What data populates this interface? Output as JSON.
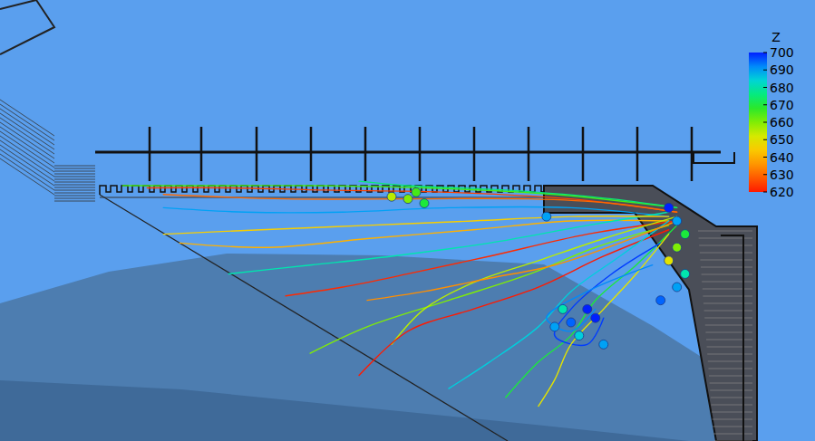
{
  "chart_data": {
    "type": "streamlines",
    "tick_labels": false,
    "xlim": [
      0,
      100
    ],
    "ylim": [
      0,
      100
    ],
    "colorbar": {
      "title": "Z",
      "range": [
        620,
        700
      ],
      "ticks": [
        700,
        690,
        680,
        670,
        660,
        650,
        640,
        630,
        620
      ]
    },
    "lines": [
      {
        "z": 625,
        "x": [
          83,
          70,
          55,
          40,
          28,
          18
        ],
        "y": [
          52,
          55,
          56.5,
          57,
          57.5,
          57.5
        ]
      },
      {
        "z": 665,
        "x": [
          83,
          68,
          52,
          38,
          25,
          15
        ],
        "y": [
          53,
          56,
          57.5,
          58,
          58,
          58
        ]
      },
      {
        "z": 690,
        "x": [
          82,
          70,
          55,
          42,
          30,
          20
        ],
        "y": [
          51,
          53,
          53,
          52,
          52,
          53
        ]
      },
      {
        "z": 640,
        "x": [
          82,
          70,
          58,
          45,
          33,
          22
        ],
        "y": [
          50,
          50,
          48,
          46,
          44,
          45
        ]
      },
      {
        "z": 680,
        "x": [
          82,
          72,
          60,
          48,
          38,
          28
        ],
        "y": [
          52,
          49,
          45,
          42,
          40,
          38
        ]
      },
      {
        "z": 622,
        "x": [
          83,
          72,
          60,
          50,
          42,
          35
        ],
        "y": [
          50,
          47,
          42,
          38,
          35,
          33
        ]
      },
      {
        "z": 660,
        "x": [
          82,
          73,
          65,
          55,
          45,
          38
        ],
        "y": [
          49,
          44,
          38,
          32,
          26,
          20
        ]
      },
      {
        "z": 655,
        "x": [
          83,
          74,
          66,
          58,
          52,
          48
        ],
        "y": [
          51,
          46,
          41,
          36,
          30,
          22
        ]
      },
      {
        "z": 620,
        "x": [
          82,
          74,
          66,
          58,
          50,
          44
        ],
        "y": [
          48,
          42,
          35,
          30,
          25,
          15
        ]
      },
      {
        "z": 685,
        "x": [
          82,
          76,
          70,
          66,
          60,
          55
        ],
        "y": [
          50,
          42,
          34,
          26,
          18,
          12
        ]
      },
      {
        "z": 670,
        "x": [
          83,
          78,
          73,
          70,
          66,
          62
        ],
        "y": [
          49,
          40,
          32,
          24,
          18,
          10
        ]
      },
      {
        "z": 698,
        "x": [
          81,
          75,
          70,
          68,
          72,
          74
        ],
        "y": [
          45,
          38,
          30,
          24,
          22,
          28
        ]
      },
      {
        "z": 650,
        "x": [
          82,
          78,
          74,
          70,
          68,
          66
        ],
        "y": [
          47,
          38,
          30,
          22,
          14,
          8
        ]
      },
      {
        "z": 630,
        "x": [
          83,
          75,
          65,
          50,
          35,
          20
        ],
        "y": [
          52,
          54,
          55,
          55,
          55,
          56
        ]
      },
      {
        "z": 675,
        "x": [
          83,
          75,
          62,
          50,
          44
        ],
        "y": [
          53,
          55,
          57,
          58,
          59
        ]
      },
      {
        "z": 645,
        "x": [
          82,
          70,
          58,
          45,
          32,
          20
        ],
        "y": [
          51,
          51,
          50,
          49,
          48,
          47
        ]
      },
      {
        "z": 692,
        "x": [
          80,
          72,
          67,
          70,
          73
        ],
        "y": [
          40,
          34,
          28,
          25,
          30
        ]
      },
      {
        "z": 635,
        "x": [
          83,
          76,
          68,
          60,
          52,
          45
        ],
        "y": [
          50,
          45,
          40,
          37,
          34,
          32
        ]
      }
    ],
    "particles": [
      {
        "x": 82,
        "y": 53,
        "z": 700
      },
      {
        "x": 83,
        "y": 50,
        "z": 690
      },
      {
        "x": 84,
        "y": 47,
        "z": 670
      },
      {
        "x": 83,
        "y": 44,
        "z": 660
      },
      {
        "x": 82,
        "y": 41,
        "z": 650
      },
      {
        "x": 84,
        "y": 38,
        "z": 680
      },
      {
        "x": 83,
        "y": 35,
        "z": 690
      },
      {
        "x": 81,
        "y": 32,
        "z": 695
      },
      {
        "x": 72,
        "y": 30,
        "z": 700
      },
      {
        "x": 70,
        "y": 27,
        "z": 695
      },
      {
        "x": 68,
        "y": 26,
        "z": 690
      },
      {
        "x": 71,
        "y": 24,
        "z": 685
      },
      {
        "x": 73,
        "y": 28,
        "z": 700
      },
      {
        "x": 69,
        "y": 30,
        "z": 680
      },
      {
        "x": 74,
        "y": 22,
        "z": 690
      },
      {
        "x": 50,
        "y": 55,
        "z": 660
      },
      {
        "x": 52,
        "y": 54,
        "z": 670
      },
      {
        "x": 48,
        "y": 55.5,
        "z": 655
      },
      {
        "x": 51,
        "y": 56.5,
        "z": 665
      },
      {
        "x": 67,
        "y": 51,
        "z": 690
      }
    ]
  }
}
